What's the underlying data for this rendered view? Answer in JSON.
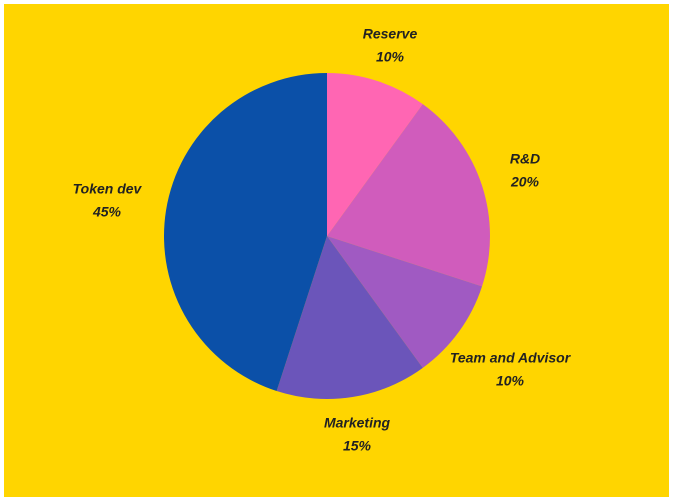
{
  "chart_data": {
    "type": "pie",
    "categories": [
      "Reserve",
      "R&D",
      "Team and Advisor",
      "Marketing",
      "Token dev"
    ],
    "values": [
      10,
      20,
      10,
      15,
      45
    ],
    "value_labels": [
      "10%",
      "20%",
      "10%",
      "15%",
      "45%"
    ],
    "colors": [
      "#ff66b3",
      "#d05cbc",
      "#a05ac2",
      "#6b55ba",
      "#0b50a8"
    ],
    "background": "#ffd500"
  }
}
